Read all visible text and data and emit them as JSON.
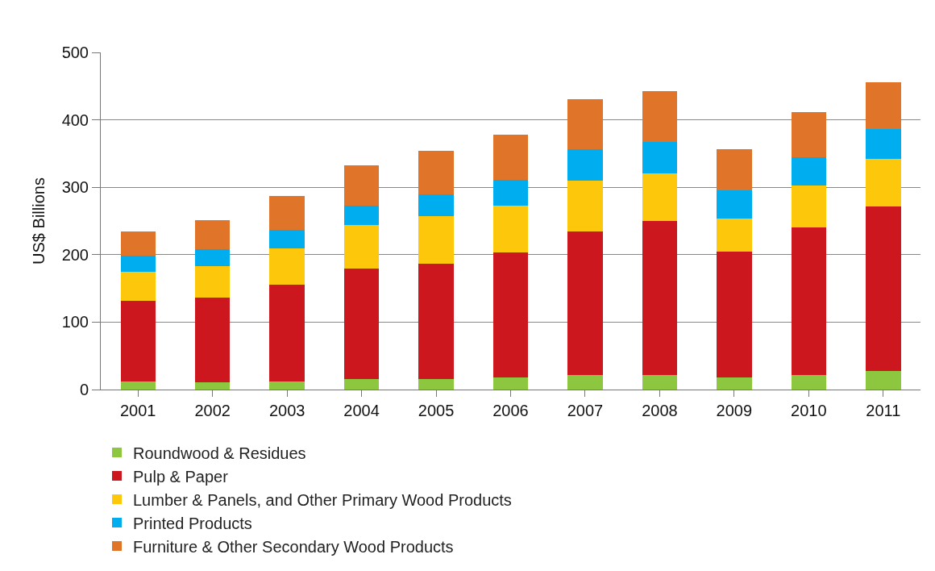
{
  "chart_data": {
    "type": "bar",
    "stacked": true,
    "ylabel": "US$ Billions",
    "categories": [
      "2001",
      "2002",
      "2003",
      "2004",
      "2005",
      "2006",
      "2007",
      "2008",
      "2009",
      "2010",
      "2011"
    ],
    "series": [
      {
        "name": "Roundwood & Residues",
        "color": "#8dc63f",
        "values": [
          12,
          11,
          12,
          15,
          15,
          18,
          22,
          21,
          18,
          21,
          28
        ]
      },
      {
        "name": "Pulp & Paper",
        "color": "#cc171e",
        "values": [
          119,
          125,
          143,
          165,
          172,
          185,
          213,
          229,
          186,
          219,
          243
        ]
      },
      {
        "name": "Lumber & Panels, and Other Primary Wood Products",
        "color": "#fdc70c",
        "values": [
          44,
          47,
          54,
          64,
          70,
          70,
          75,
          71,
          50,
          63,
          71
        ]
      },
      {
        "name": "Printed Products",
        "color": "#00aeef",
        "values": [
          24,
          25,
          28,
          29,
          32,
          38,
          46,
          46,
          41,
          41,
          44
        ]
      },
      {
        "name": "Furniture & Other Secondary Wood Products",
        "color": "#e07429",
        "values": [
          36,
          43,
          50,
          60,
          65,
          67,
          75,
          76,
          62,
          68,
          70
        ]
      }
    ],
    "ylim": [
      0,
      500
    ],
    "yticks": [
      0,
      100,
      200,
      300,
      400,
      500
    ],
    "grid": "y",
    "legend": "bottom"
  }
}
